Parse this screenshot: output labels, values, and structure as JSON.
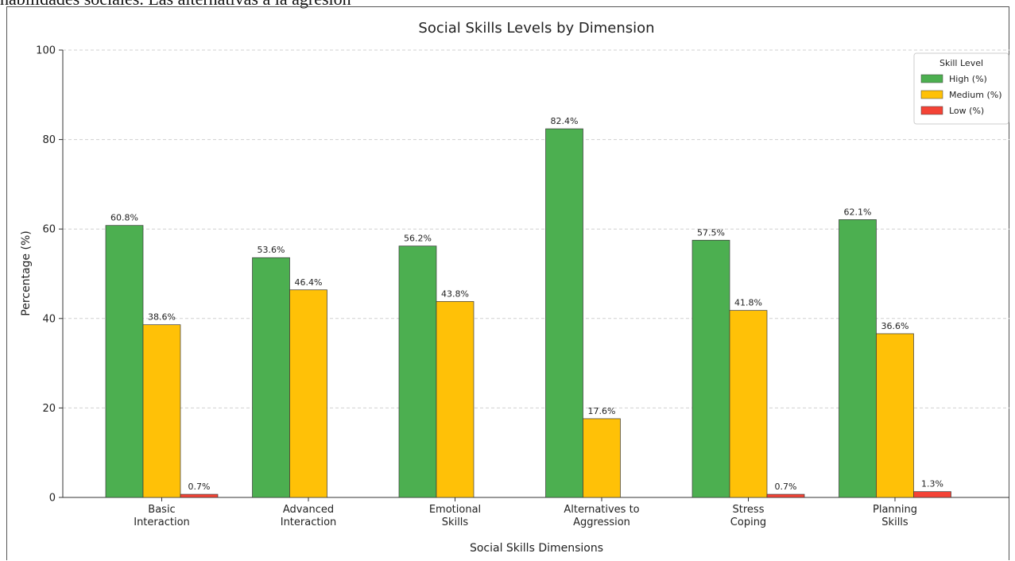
{
  "page_header_fragment": "habilidades sociales. Las alternativas a la agresión",
  "chart_data": {
    "type": "bar",
    "title": "Social Skills Levels by Dimension",
    "xlabel": "Social Skills Dimensions",
    "ylabel": "Percentage (%)",
    "ylim": [
      0,
      100
    ],
    "yticks": [
      0,
      20,
      40,
      60,
      80,
      100
    ],
    "grid": true,
    "legend": {
      "title": "Skill Level",
      "placement": "top-right"
    },
    "categories": [
      [
        "Basic",
        "Interaction"
      ],
      [
        "Advanced",
        "Interaction"
      ],
      [
        "Emotional",
        "Skills"
      ],
      [
        "Alternatives to",
        "Aggression"
      ],
      [
        "Stress",
        "Coping"
      ],
      [
        "Planning",
        "Skills"
      ]
    ],
    "series": [
      {
        "name": "High (%)",
        "color": "#4caf50",
        "values": [
          60.8,
          53.6,
          56.2,
          82.4,
          57.5,
          62.1
        ],
        "labels": [
          "60.8%",
          "53.6%",
          "56.2%",
          "82.4%",
          "57.5%",
          "62.1%"
        ]
      },
      {
        "name": "Medium (%)",
        "color": "#ffc107",
        "values": [
          38.6,
          46.4,
          43.8,
          17.6,
          41.8,
          36.6
        ],
        "labels": [
          "38.6%",
          "46.4%",
          "43.8%",
          "17.6%",
          "41.8%",
          "36.6%"
        ]
      },
      {
        "name": "Low (%)",
        "color": "#f44336",
        "values": [
          0.7,
          0,
          0,
          0,
          0.7,
          1.3
        ],
        "labels": [
          "0.7%",
          "",
          "",
          "",
          "0.7%",
          "1.3%"
        ]
      }
    ]
  }
}
